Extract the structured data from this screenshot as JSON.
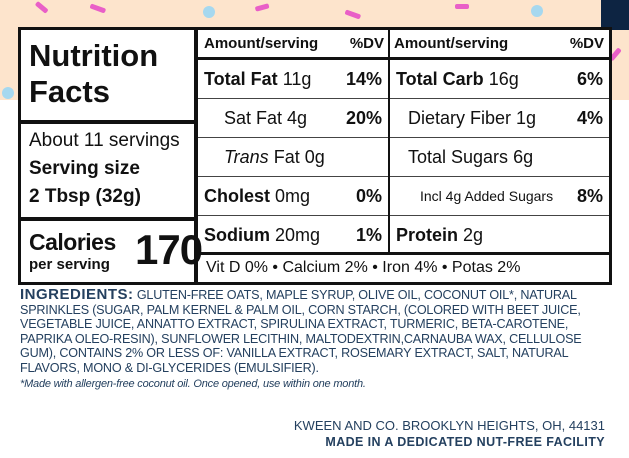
{
  "nutrition_facts": {
    "title": "Nutrition Facts",
    "servings": "About 11 servings",
    "serving_size_label": "Serving size",
    "serving_size": "2 Tbsp (32g)",
    "calories_label": "Calories",
    "per_serving": "per serving",
    "calories": "170",
    "header": {
      "amount_left": "Amount/serving",
      "dv_left": "%DV",
      "amount_right": "Amount/serving",
      "dv_right": "%DV"
    },
    "left_rows": [
      {
        "name": "Total Fat",
        "amount": "11g",
        "dv": "14%"
      },
      {
        "name": "Sat Fat",
        "amount": "4g",
        "dv": "20%"
      },
      {
        "name": "Trans",
        "amount": "Fat 0g"
      },
      {
        "name": "Cholest",
        "amount": "0mg",
        "dv": "0%"
      },
      {
        "name": "Sodium",
        "amount": "20mg",
        "dv": "1%"
      }
    ],
    "right_rows": [
      {
        "name": "Total Carb",
        "amount": "16g",
        "dv": "6%"
      },
      {
        "name": "Dietary Fiber",
        "amount": "1g",
        "dv": "4%"
      },
      {
        "name": "Total Sugars",
        "amount": "6g"
      },
      {
        "name": "Incl 4g Added Sugars",
        "dv": "8%"
      },
      {
        "name": "Protein",
        "amount": "2g"
      }
    ],
    "footer": "Vit D 0% • Calcium 2% • Iron 4% • Potas 2%"
  },
  "ingredients": {
    "label": "INGREDIENTS:",
    "text": "GLUTEN-FREE OATS, MAPLE SYRUP, OLIVE OIL, COCONUT OIL*, NATURAL SPRINKLES (SUGAR, PALM KERNEL & PALM OIL, CORN STARCH, (COLORED WITH BEET JUICE, VEGETABLE JUICE, ANNATTO EXTRACT, SPIRULINA EXTRACT, TURMERIC, BETA-CAROTENE, PAPRIKA OLEO-RESIN), SUNFLOWER LECITHIN, MALTODEXTRIN,CARNAUBA WAX, CELLULOSE GUM), CONTAINS 2% OR LESS OF: VANILLA EXTRACT, ROSEMARY EXTRACT, SALT, NATURAL FLAVORS, MONO & DI-GLYCERIDES (EMULSIFIER).",
    "note": "*Made with allergen-free coconut oil. Once opened, use within one month."
  },
  "company": {
    "address": "KWEEN AND CO. BROOKLYN HEIGHTS, OH, 44131",
    "facility": "MADE IN A DEDICATED NUT-FREE FACILITY"
  }
}
